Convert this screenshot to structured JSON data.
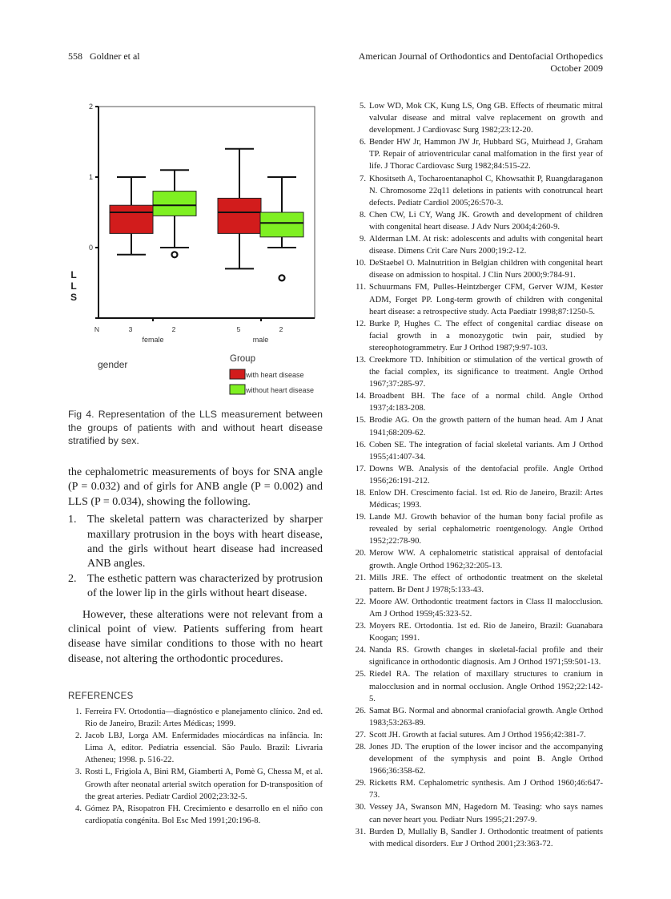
{
  "header": {
    "left": "558   Goldner et al",
    "right_line1": "American Journal of Orthodontics and Dentofacial Orthopedics",
    "right_line2": "October 2009"
  },
  "chart_data": {
    "type": "boxplot",
    "ylabel": "LLS",
    "xlabel": "gender",
    "ylim": [
      -1,
      2
    ],
    "yticks": [
      "2",
      "1",
      "0"
    ],
    "categories": [
      "female",
      "male"
    ],
    "n_label": "N",
    "legend_title": "Group",
    "legend_position": "bottom-right",
    "grid": false,
    "series": [
      {
        "name": "with heart disease",
        "color": "#d21c1c",
        "n": [
          "3",
          "5"
        ],
        "boxes": [
          {
            "min": -0.1,
            "q1": 0.2,
            "median": 0.5,
            "q3": 0.6,
            "max": 1.0,
            "outliers": []
          },
          {
            "min": -0.3,
            "q1": 0.2,
            "median": 0.5,
            "q3": 0.7,
            "max": 1.4,
            "outliers": []
          }
        ]
      },
      {
        "name": "without heart disease",
        "color": "#7ff022",
        "n": [
          "2",
          "2"
        ],
        "boxes": [
          {
            "min": 0.0,
            "q1": 0.45,
            "median": 0.6,
            "q3": 0.8,
            "max": 1.1,
            "outliers": [
              -0.1
            ]
          },
          {
            "min": 0.0,
            "q1": 0.15,
            "median": 0.35,
            "q3": 0.5,
            "max": 1.0,
            "outliers": [
              -0.43
            ]
          }
        ]
      }
    ]
  },
  "caption": "Fig 4. Representation of the LLS measurement between the groups of patients with and without heart disease stratified by sex.",
  "body": {
    "intro": "the cephalometric measurements of boys for SNA angle (P = 0.032) and of girls for ANB angle (P = 0.002) and LLS (P = 0.034), showing the following.",
    "list": [
      {
        "n": "1.",
        "text": "The skeletal pattern was characterized by sharper maxillary protrusion in the boys with heart disease, and the girls without heart disease had increased ANB angles."
      },
      {
        "n": "2.",
        "text": "The esthetic pattern was characterized by protrusion of the lower lip in the girls without heart disease."
      }
    ],
    "paragraph": "However, these alterations were not relevant from a clinical point of view. Patients suffering from heart disease have similar conditions to those with no heart disease, not altering the orthodontic procedures."
  },
  "references_title": "REFERENCES",
  "references_left": [
    {
      "n": "1.",
      "text": "Ferreira FV. Ortodontia—diagnóstico e planejamento clínico. 2nd ed. Rio de Janeiro, Brazil: Artes Médicas; 1999."
    },
    {
      "n": "2.",
      "text": "Jacob LBJ, Lorga AM. Enfermidades miocárdicas na infância. In: Lima A, editor. Pediatria essencial. São Paulo. Brazil: Livraria Atheneu; 1998. p. 516-22."
    },
    {
      "n": "3.",
      "text": "Rosti L, Frigiola A, Bini RM, Giamberti A, Pomè G, Chessa M, et al. Growth after neonatal arterial switch operation for D-transposition of the great arteries. Pediatr Cardiol 2002;23:32-5."
    },
    {
      "n": "4.",
      "text": "Gómez PA, Risopatron FH. Crecimiento e desarrollo en el niño con cardiopatía congénita. Bol Esc Med 1991;20:196-8."
    }
  ],
  "references_right": [
    {
      "n": "5.",
      "text": "Low WD, Mok CK, Kung LS, Ong GB. Effects of rheumatic mitral valvular disease and mitral valve replacement on growth and development. J Cardiovasc Surg 1982;23:12-20."
    },
    {
      "n": "6.",
      "text": "Bender HW Jr, Hammon JW Jr, Hubbard SG, Muirhead J, Graham TP. Repair of atrioventricular canal malfomation in the first year of life. J Thorac Cardiovasc Surg 1982;84:515-22."
    },
    {
      "n": "7.",
      "text": "Khositseth A, Tocharoentanaphol C, Khowsathit P, Ruangdaraganon N. Chromosome 22q11 deletions in patients with conotruncal heart defects. Pediatr Cardiol 2005;26:570-3."
    },
    {
      "n": "8.",
      "text": "Chen CW, Li CY, Wang JK. Growth and development of children with congenital heart disease. J Adv Nurs 2004;4:260-9."
    },
    {
      "n": "9.",
      "text": "Alderman LM. At risk: adolescents and adults with congenital heart disease. Dimens Crit Care Nurs 2000;19:2-12."
    },
    {
      "n": "10.",
      "text": "DeStaebel O. Malnutrition in Belgian children with congenital heart disease on admission to hospital. J Clin Nurs 2000;9:784-91."
    },
    {
      "n": "11.",
      "text": "Schuurmans FM, Pulles-Heintzberger CFM, Gerver WJM, Kester ADM, Forget PP. Long-term growth of children with congenital heart disease: a retrospective study. Acta Paediatr 1998;87:1250-5."
    },
    {
      "n": "12.",
      "text": "Burke P, Hughes C. The effect of congenital cardiac disease on facial growth in a monozygotic twin pair, studied by stereophotogrammetry. Eur J Orthod 1987;9:97-103."
    },
    {
      "n": "13.",
      "text": "Creekmore TD. Inhibition or stimulation of the vertical growth of the facial complex, its significance to treatment. Angle Orthod 1967;37:285-97."
    },
    {
      "n": "14.",
      "text": "Broadbent BH. The face of a normal child. Angle Orthod 1937;4:183-208."
    },
    {
      "n": "15.",
      "text": "Brodie AG. On the growth pattern of the human head. Am J Anat 1941;68:209-62."
    },
    {
      "n": "16.",
      "text": "Coben SE. The integration of facial skeletal variants. Am J Orthod 1955;41:407-34."
    },
    {
      "n": "17.",
      "text": "Downs WB. Analysis of the dentofacial profile. Angle Orthod 1956;26:191-212."
    },
    {
      "n": "18.",
      "text": "Enlow DH. Crescimento facial. 1st ed. Rio de Janeiro, Brazil: Artes Médicas; 1993."
    },
    {
      "n": "19.",
      "text": "Lande MJ. Growth behavior of the human bony facial profile as revealed by serial cephalometric roentgenology. Angle Orthod 1952;22:78-90."
    },
    {
      "n": "20.",
      "text": "Merow WW. A cephalometric statistical appraisal of dentofacial growth. Angle Orthod 1962;32:205-13."
    },
    {
      "n": "21.",
      "text": "Mills JRE. The effect of orthodontic treatment on the skeletal pattern. Br Dent J 1978;5:133-43."
    },
    {
      "n": "22.",
      "text": "Moore AW. Orthodontic treatment factors in Class II malocclusion. Am J Orthod 1959;45:323-52."
    },
    {
      "n": "23.",
      "text": "Moyers RE. Ortodontia. 1st ed. Rio de Janeiro, Brazil: Guanabara Koogan; 1991."
    },
    {
      "n": "24.",
      "text": "Nanda RS. Growth changes in skeletal-facial profile and their significance in orthodontic diagnosis. Am J Orthod 1971;59:501-13."
    },
    {
      "n": "25.",
      "text": "Riedel RA. The relation of maxillary structures to cranium in malocclusion and in normal occlusion. Angle Orthod 1952;22:142-5."
    },
    {
      "n": "26.",
      "text": "Samat BG. Normal and abnormal craniofacial growth. Angle Orthod 1983;53:263-89."
    },
    {
      "n": "27.",
      "text": "Scott JH. Growth at facial sutures. Am J Orthod 1956;42:381-7."
    },
    {
      "n": "28.",
      "text": "Jones JD. The eruption of the lower incisor and the accompanying development of the symphysis and point B. Angle Orthod 1966;36:358-62."
    },
    {
      "n": "29.",
      "text": "Ricketts RM. Cephalometric synthesis. Am J Orthod 1960;46:647-73."
    },
    {
      "n": "30.",
      "text": "Vessey JA, Swanson MN, Hagedorn M. Teasing: who says names can never heart you. Pediatr Nurs 1995;21:297-9."
    },
    {
      "n": "31.",
      "text": "Burden D, Mullally B, Sandler J. Orthodontic treatment of patients with medical disorders. Eur J Orthod 2001;23:363-72."
    }
  ]
}
